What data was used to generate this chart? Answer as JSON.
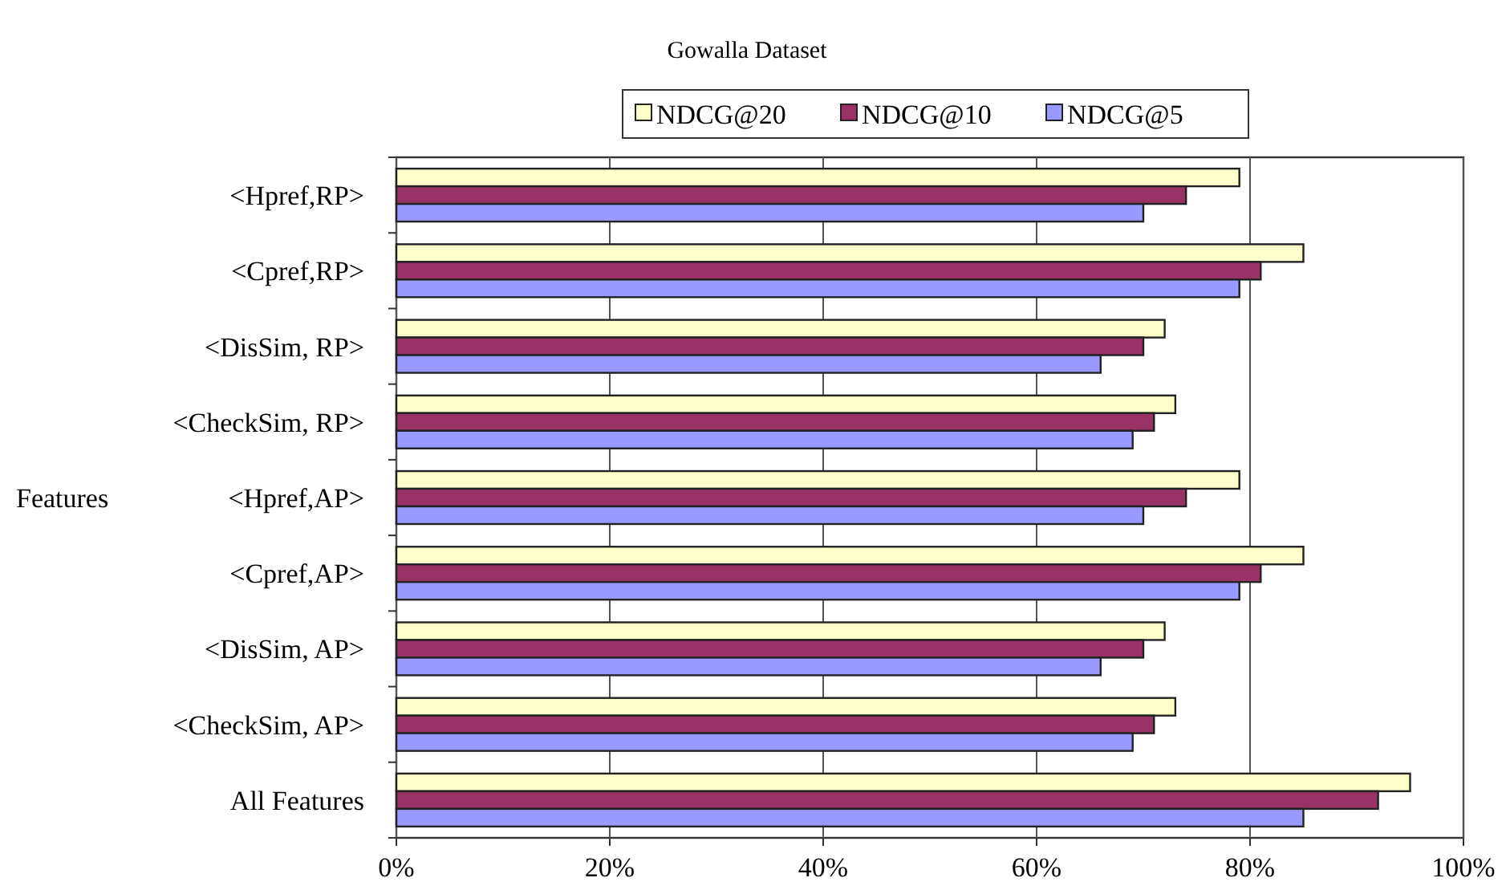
{
  "chart_data": {
    "type": "bar",
    "orientation": "horizontal",
    "title": "Gowalla Dataset",
    "ylabel": "Features",
    "categories": [
      "<Hpref,RP>",
      "<Cpref,RP>",
      "<DisSim, RP>",
      "<CheckSim, RP>",
      "<Hpref,AP>",
      "<Cpref,AP>",
      "<DisSim, AP>",
      "<CheckSim, AP>",
      "All Features"
    ],
    "series": [
      {
        "name": "NDCG@20",
        "color": "#ffffcc",
        "values": [
          79,
          85,
          72,
          73,
          79,
          85,
          72,
          73,
          95
        ]
      },
      {
        "name": "NDCG@10",
        "color": "#993366",
        "values": [
          74,
          81,
          70,
          71,
          74,
          81,
          70,
          71,
          92
        ]
      },
      {
        "name": "NDCG@5",
        "color": "#9999ff",
        "values": [
          70,
          79,
          66,
          69,
          70,
          79,
          66,
          69,
          85
        ]
      }
    ],
    "xlim": [
      0,
      100
    ],
    "xticks": [
      {
        "value": 0,
        "label": "0%"
      },
      {
        "value": 20,
        "label": "20%"
      },
      {
        "value": 40,
        "label": "40%"
      },
      {
        "value": 60,
        "label": "60%"
      },
      {
        "value": 80,
        "label": "80%"
      },
      {
        "value": 100,
        "label": "100%"
      }
    ],
    "grid": "x",
    "legend": "top"
  }
}
